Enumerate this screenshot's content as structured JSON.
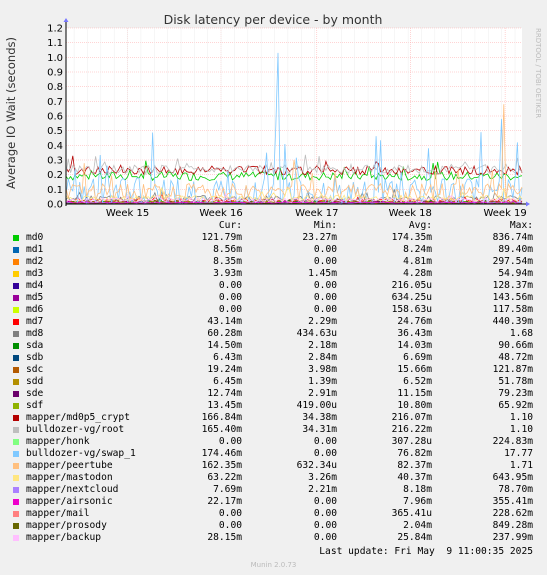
{
  "chart_data": {
    "type": "line",
    "title": "Disk latency per device - by month",
    "ylabel": "Average IO Wait (seconds)",
    "ylim": [
      0.0,
      1.2
    ],
    "yticks": [
      "0.0",
      "0.1",
      "0.2",
      "0.3",
      "0.4",
      "0.5",
      "0.6",
      "0.7",
      "0.8",
      "0.9",
      "1.0",
      "1.1",
      "1.2"
    ],
    "xticks": [
      "Week 15",
      "Week 16",
      "Week 17",
      "Week 18",
      "Week 19"
    ],
    "grid": true,
    "side_text": "RRDTOOL / TOBI OETIKER",
    "columns": [
      "Cur:",
      "Min:",
      "Avg:",
      "Max:"
    ],
    "series": [
      {
        "name": "md0",
        "color": "#00cc00",
        "cur": "121.79m",
        "min": "23.27m",
        "avg": "174.35m",
        "max": "836.74m",
        "typical": 0.19,
        "spread": 0.03,
        "spikes": []
      },
      {
        "name": "md1",
        "color": "#0066b3",
        "cur": "8.56m",
        "min": "0.00",
        "avg": "8.24m",
        "max": "89.40m",
        "typical": 0.008,
        "spread": 0.004,
        "spikes": []
      },
      {
        "name": "md2",
        "color": "#ff8000",
        "cur": "8.35m",
        "min": "0.00",
        "avg": "4.81m",
        "max": "297.54m",
        "typical": 0.005,
        "spread": 0.003,
        "spikes": []
      },
      {
        "name": "md3",
        "color": "#ffcc00",
        "cur": "3.93m",
        "min": "1.45m",
        "avg": "4.28m",
        "max": "54.94m",
        "typical": 0.004,
        "spread": 0.002,
        "spikes": []
      },
      {
        "name": "md4",
        "color": "#330099",
        "cur": "0.00",
        "min": "0.00",
        "avg": "216.05u",
        "max": "128.37m",
        "typical": 0.0,
        "spread": 0.0,
        "spikes": []
      },
      {
        "name": "md5",
        "color": "#990099",
        "cur": "0.00",
        "min": "0.00",
        "avg": "634.25u",
        "max": "143.56m",
        "typical": 0.0,
        "spread": 0.0,
        "spikes": []
      },
      {
        "name": "md6",
        "color": "#ccff00",
        "cur": "0.00",
        "min": "0.00",
        "avg": "158.63u",
        "max": "117.58m",
        "typical": 0.0,
        "spread": 0.0,
        "spikes": []
      },
      {
        "name": "md7",
        "color": "#ff0000",
        "cur": "43.14m",
        "min": "2.29m",
        "avg": "24.76m",
        "max": "440.39m",
        "typical": 0.024,
        "spread": 0.012,
        "spikes": []
      },
      {
        "name": "md8",
        "color": "#808080",
        "cur": "60.28m",
        "min": "434.63u",
        "avg": "36.43m",
        "max": "1.68",
        "typical": 0.036,
        "spread": 0.02,
        "spikes": []
      },
      {
        "name": "sda",
        "color": "#008f00",
        "cur": "14.50m",
        "min": "2.18m",
        "avg": "14.03m",
        "max": "90.66m",
        "typical": 0.014,
        "spread": 0.006,
        "spikes": []
      },
      {
        "name": "sdb",
        "color": "#00487d",
        "cur": "6.43m",
        "min": "2.84m",
        "avg": "6.69m",
        "max": "48.72m",
        "typical": 0.007,
        "spread": 0.003,
        "spikes": []
      },
      {
        "name": "sdc",
        "color": "#b35a00",
        "cur": "19.24m",
        "min": "3.98m",
        "avg": "15.66m",
        "max": "121.87m",
        "typical": 0.016,
        "spread": 0.006,
        "spikes": []
      },
      {
        "name": "sdd",
        "color": "#b38f00",
        "cur": "6.45m",
        "min": "1.39m",
        "avg": "6.52m",
        "max": "51.78m",
        "typical": 0.007,
        "spread": 0.003,
        "spikes": []
      },
      {
        "name": "sde",
        "color": "#6b006b",
        "cur": "12.74m",
        "min": "2.91m",
        "avg": "11.15m",
        "max": "79.23m",
        "typical": 0.011,
        "spread": 0.005,
        "spikes": []
      },
      {
        "name": "sdf",
        "color": "#8fb300",
        "cur": "13.45m",
        "min": "419.00u",
        "avg": "10.80m",
        "max": "65.92m",
        "typical": 0.011,
        "spread": 0.005,
        "spikes": []
      },
      {
        "name": "mapper/md0p5_crypt",
        "color": "#b30000",
        "cur": "166.84m",
        "min": "34.38m",
        "avg": "216.07m",
        "max": "1.10",
        "typical": 0.23,
        "spread": 0.03,
        "spikes": []
      },
      {
        "name": "bulldozer-vg/root",
        "color": "#bebebe",
        "cur": "165.40m",
        "min": "34.31m",
        "avg": "216.22m",
        "max": "1.10",
        "typical": 0.235,
        "spread": 0.03,
        "spikes": []
      },
      {
        "name": "mapper/honk",
        "color": "#80ff80",
        "cur": "0.00",
        "min": "0.00",
        "avg": "307.28u",
        "max": "224.83m",
        "typical": 0.0,
        "spread": 0.0,
        "spikes": []
      },
      {
        "name": "bulldozer-vg/swap_1",
        "color": "#80c9ff",
        "cur": "174.46m",
        "min": "0.00",
        "avg": "76.82m",
        "max": "17.77",
        "typical": 0.06,
        "spread": 0.12,
        "spikes": [
          [
            0.465,
            1.03
          ],
          [
            0.953,
            0.58
          ],
          [
            0.988,
            0.42
          ],
          [
            0.44,
            0.35
          ]
        ]
      },
      {
        "name": "mapper/peertube",
        "color": "#ffc080",
        "cur": "162.35m",
        "min": "632.34u",
        "avg": "82.37m",
        "max": "1.71",
        "typical": 0.08,
        "spread": 0.06,
        "spikes": [
          [
            0.962,
            0.68
          ],
          [
            0.5,
            0.3
          ]
        ]
      },
      {
        "name": "mapper/mastodon",
        "color": "#ffe680",
        "cur": "63.22m",
        "min": "3.26m",
        "avg": "40.37m",
        "max": "643.95m",
        "typical": 0.04,
        "spread": 0.02,
        "spikes": []
      },
      {
        "name": "mapper/nextcloud",
        "color": "#aa80ff",
        "cur": "7.69m",
        "min": "2.21m",
        "avg": "8.18m",
        "max": "78.70m",
        "typical": 0.008,
        "spread": 0.004,
        "spikes": []
      },
      {
        "name": "mapper/airsonic",
        "color": "#ee00cc",
        "cur": "22.17m",
        "min": "0.00",
        "avg": "7.96m",
        "max": "355.41m",
        "typical": 0.008,
        "spread": 0.006,
        "spikes": []
      },
      {
        "name": "mapper/mail",
        "color": "#ff8080",
        "cur": "0.00",
        "min": "0.00",
        "avg": "365.41u",
        "max": "228.62m",
        "typical": 0.0,
        "spread": 0.0,
        "spikes": []
      },
      {
        "name": "mapper/prosody",
        "color": "#666600",
        "cur": "0.00",
        "min": "0.00",
        "avg": "2.04m",
        "max": "849.28m",
        "typical": 0.002,
        "spread": 0.002,
        "spikes": []
      },
      {
        "name": "mapper/backup",
        "color": "#ffbfff",
        "cur": "28.15m",
        "min": "0.00",
        "avg": "25.84m",
        "max": "237.99m",
        "typical": 0.026,
        "spread": 0.015,
        "spikes": []
      }
    ]
  },
  "footer": {
    "last_update": "Last update: Fri May  9 11:00:35 2025",
    "version": "Munin 2.0.73"
  }
}
